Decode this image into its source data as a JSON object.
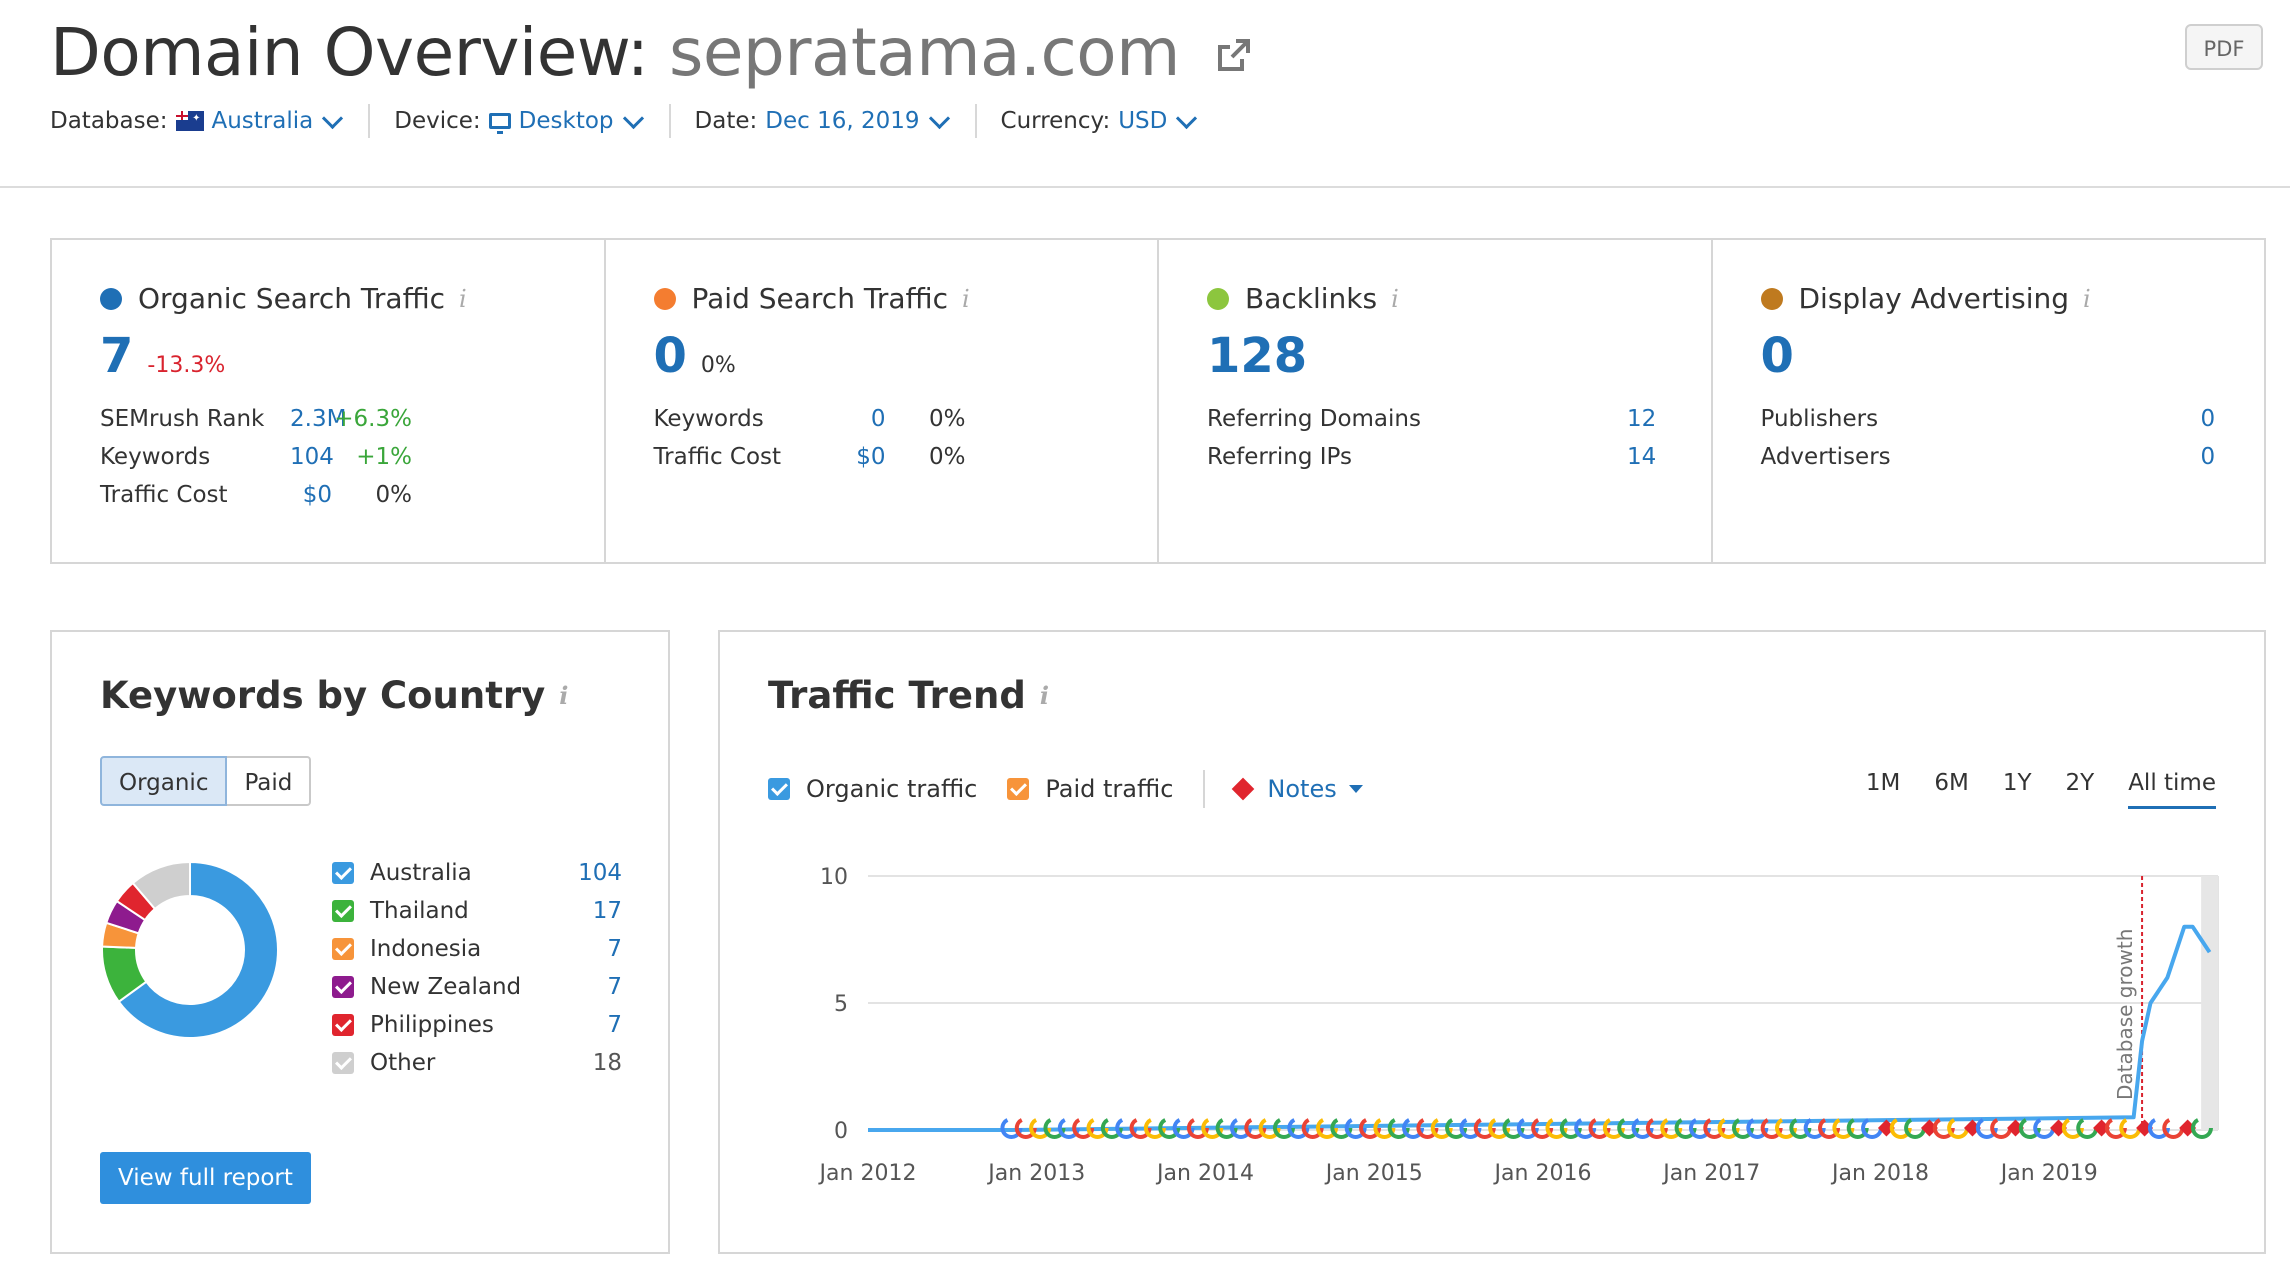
{
  "header": {
    "title_prefix": "Domain Overview:",
    "domain": "sepratama.com",
    "pdf_label": "PDF",
    "filters": [
      {
        "label": "Database:",
        "value": "Australia",
        "icon": "australia-flag-icon"
      },
      {
        "label": "Device:",
        "value": "Desktop",
        "icon": "desktop-icon"
      },
      {
        "label": "Date:",
        "value": "Dec 16, 2019"
      },
      {
        "label": "Currency:",
        "value": "USD"
      }
    ]
  },
  "info_glyph": "i",
  "cards": {
    "organic": {
      "title": "Organic Search Traffic",
      "color": "#1f6fb5",
      "value": "7",
      "change": "-13.3%",
      "rows": [
        {
          "label": "SEMrush Rank",
          "value": "2.3M",
          "change": "+6.3%"
        },
        {
          "label": "Keywords",
          "value": "104",
          "change": "+1%"
        },
        {
          "label": "Traffic Cost",
          "value": "$0",
          "change": "0%"
        }
      ]
    },
    "paid": {
      "title": "Paid Search Traffic",
      "color": "#f47d30",
      "value": "0",
      "change": "0%",
      "rows": [
        {
          "label": "Keywords",
          "value": "0",
          "change": "0%"
        },
        {
          "label": "Traffic Cost",
          "value": "$0",
          "change": "0%"
        }
      ]
    },
    "backlinks": {
      "title": "Backlinks",
      "color": "#8cc63e",
      "value": "128",
      "rows": [
        {
          "label": "Referring Domains",
          "value": "12"
        },
        {
          "label": "Referring IPs",
          "value": "14"
        }
      ]
    },
    "display": {
      "title": "Display Advertising",
      "color": "#bf7a1f",
      "value": "0",
      "rows": [
        {
          "label": "Publishers",
          "value": "0"
        },
        {
          "label": "Advertisers",
          "value": "0"
        }
      ]
    }
  },
  "keywords_by_country": {
    "title": "Keywords by Country",
    "toggle": {
      "active": "Organic",
      "inactive": "Paid"
    },
    "button": "View full report",
    "countries": [
      {
        "name": "Australia",
        "value": 104,
        "color": "#3a9ae0"
      },
      {
        "name": "Thailand",
        "value": 17,
        "color": "#3cb33c"
      },
      {
        "name": "Indonesia",
        "value": 7,
        "color": "#f7943a"
      },
      {
        "name": "New Zealand",
        "value": 7,
        "color": "#8e1b8e"
      },
      {
        "name": "Philippines",
        "value": 7,
        "color": "#e0252e"
      },
      {
        "name": "Other",
        "value": 18,
        "color": "#cfcfcf"
      }
    ]
  },
  "traffic_trend": {
    "title": "Traffic Trend",
    "toggles": {
      "organic": "Organic traffic",
      "paid": "Paid traffic",
      "notes": "Notes"
    },
    "ranges": [
      "1M",
      "6M",
      "1Y",
      "2Y",
      "All time"
    ],
    "active_range": "All time",
    "annotation": "Database growth"
  },
  "chart_data": {
    "type": "line",
    "title": "Traffic Trend",
    "xlabel": "",
    "ylabel": "",
    "ylim": [
      0,
      10
    ],
    "yticks": [
      0,
      5,
      10
    ],
    "xticks": [
      "Jan 2012",
      "Jan 2013",
      "Jan 2014",
      "Jan 2015",
      "Jan 2016",
      "Jan 2017",
      "Jan 2018",
      "Jan 2019"
    ],
    "xlim": [
      2012.0,
      2020.0
    ],
    "series": [
      {
        "name": "Organic traffic",
        "x": [
          2012.0,
          2012.85,
          2019.5,
          2019.55,
          2019.6,
          2019.65,
          2019.7,
          2019.75,
          2019.8,
          2019.85,
          2019.9,
          2019.95
        ],
        "y": [
          0,
          0,
          0.5,
          3.5,
          5.0,
          5.5,
          6.0,
          7.0,
          8.0,
          8.0,
          7.5,
          7.0
        ]
      }
    ],
    "notes_marker_range": [
      2012.85,
      2019.95
    ],
    "annotation": {
      "label": "Database growth",
      "x": 2019.55
    }
  }
}
